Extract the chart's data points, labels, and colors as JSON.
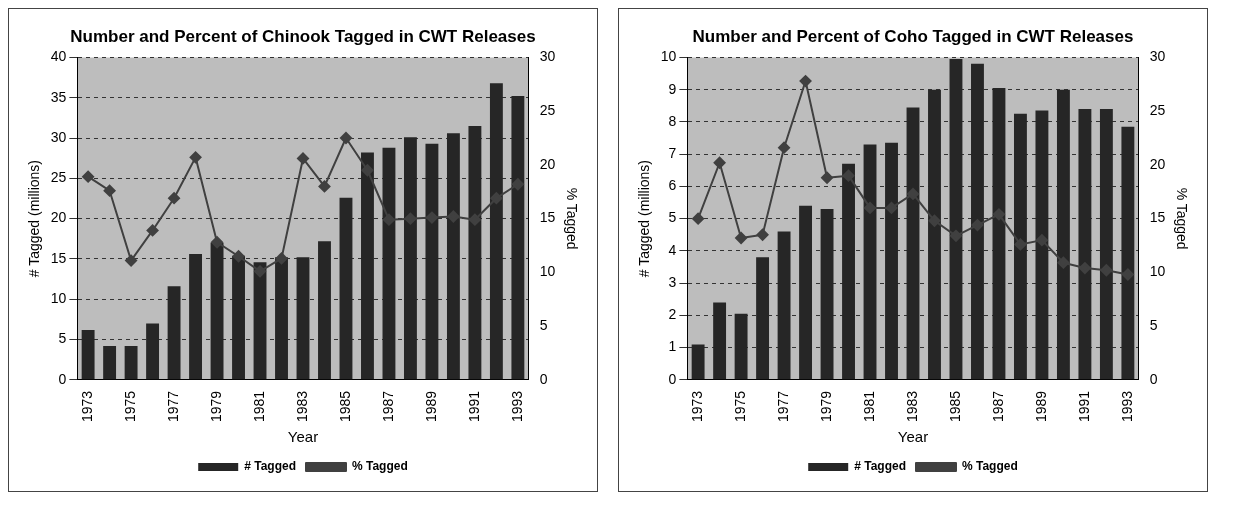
{
  "chart_data": [
    {
      "type": "bar",
      "title": "Number and Percent of Chinook Tagged in CWT Releases",
      "xlabel": "Year",
      "ylabel": "# Tagged (millions)",
      "y2label": "% Tagged",
      "categories": [
        "1973",
        null,
        "1975",
        null,
        "1977",
        null,
        "1979",
        null,
        "1981",
        null,
        "1983",
        null,
        "1985",
        null,
        "1987",
        null,
        "1989",
        null,
        "1991",
        null,
        "1993"
      ],
      "series": [
        {
          "name": "# Tagged",
          "color": "#262626",
          "values": [
            6.2,
            4.2,
            4.2,
            7,
            11.6,
            15.6,
            17,
            15.4,
            14.6,
            15.2,
            15.2,
            17.2,
            22.6,
            28.2,
            28.8,
            30.1,
            29.3,
            30.6,
            31.5,
            36.8,
            35.2
          ]
        },
        {
          "name": "% Tagged",
          "type": "line",
          "axis": "y2",
          "color": "#404040",
          "values": [
            18.9,
            17.6,
            11.1,
            13.9,
            16.9,
            20.7,
            12.8,
            11.5,
            10.1,
            11.3,
            20.6,
            18,
            22.5,
            19.5,
            14.9,
            15,
            15.1,
            15.2,
            14.9,
            16.9,
            18.2
          ]
        }
      ],
      "ylim": [
        0,
        40
      ],
      "yticks": [
        0,
        5,
        10,
        15,
        20,
        25,
        30,
        35,
        40
      ],
      "y2lim": [
        0,
        30
      ],
      "y2ticks": [
        0,
        5,
        10,
        15,
        20,
        25,
        30
      ],
      "grid": "y",
      "legend": "bottom",
      "marker": "diamond"
    },
    {
      "type": "bar",
      "title": "Number and Percent of Coho Tagged in CWT Releases",
      "xlabel": "Year",
      "ylabel": "# Tagged (millions)",
      "y2label": "% Tagged",
      "categories": [
        "1973",
        null,
        "1975",
        null,
        "1977",
        null,
        "1979",
        null,
        "1981",
        null,
        "1983",
        null,
        "1985",
        null,
        "1987",
        null,
        "1989",
        null,
        "1991",
        null,
        "1993"
      ],
      "series": [
        {
          "name": "# Tagged",
          "color": "#262626",
          "values": [
            1.1,
            2.4,
            2.05,
            3.8,
            4.6,
            5.4,
            5.3,
            6.7,
            7.3,
            7.35,
            8.45,
            9,
            9.95,
            9.8,
            9.05,
            8.25,
            8.35,
            9,
            8.4,
            8.4,
            7.85
          ]
        },
        {
          "name": "% Tagged",
          "type": "line",
          "axis": "y2",
          "color": "#404040",
          "values": [
            15,
            20.2,
            13.2,
            13.5,
            21.6,
            27.8,
            18.8,
            19,
            16,
            16,
            17.3,
            14.8,
            13.4,
            14.4,
            15.4,
            12.6,
            13,
            10.9,
            10.4,
            10.2,
            9.8
          ]
        }
      ],
      "ylim": [
        0,
        10
      ],
      "yticks": [
        0,
        1,
        2,
        3,
        4,
        5,
        6,
        7,
        8,
        9,
        10
      ],
      "y2lim": [
        0,
        30
      ],
      "y2ticks": [
        0,
        5,
        10,
        15,
        20,
        25,
        30
      ],
      "grid": "y",
      "legend": "bottom",
      "marker": "diamond"
    }
  ]
}
